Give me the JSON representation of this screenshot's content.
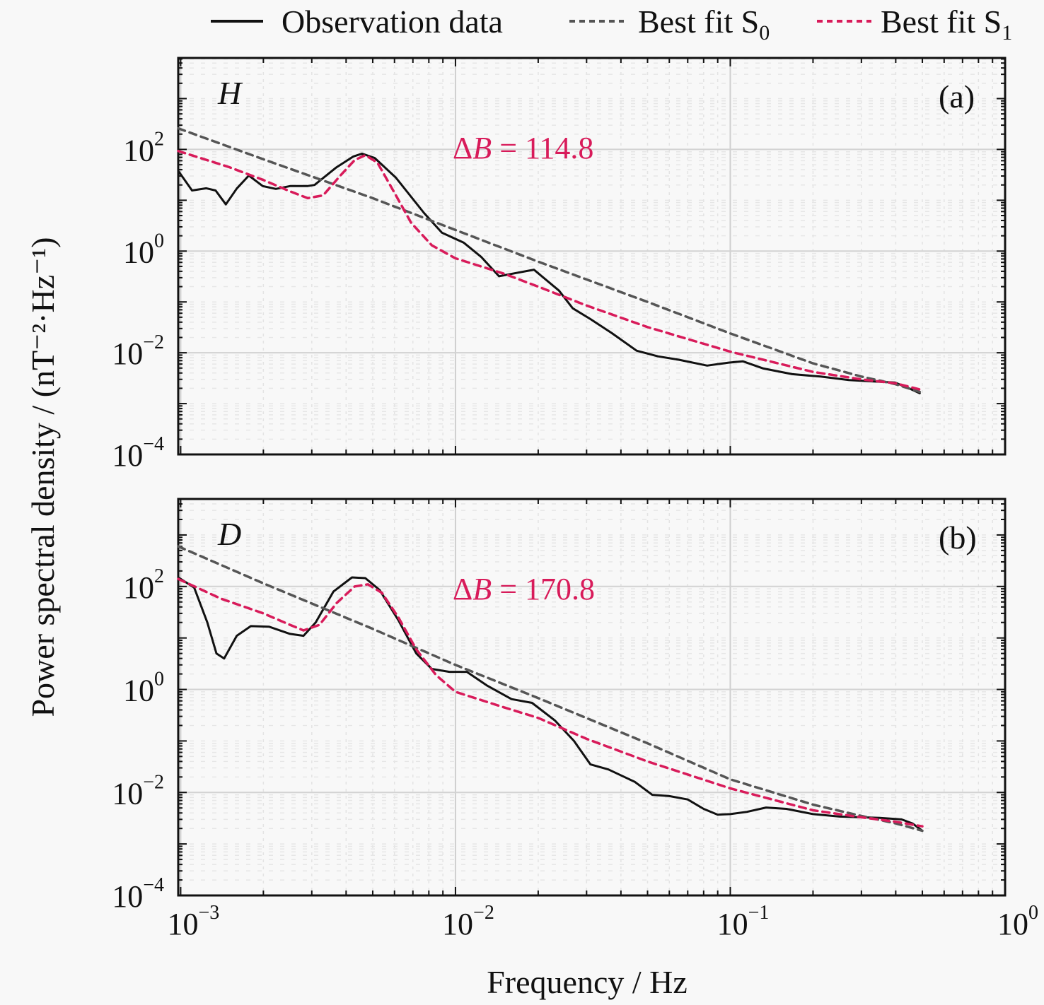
{
  "chart_data": {
    "type": "line",
    "xscale": "log",
    "yscale": "log",
    "xlabel": "Frequency / Hz",
    "ylabel": "Power spectral density / (nT⁻²·Hz⁻¹)",
    "xlim": [
      0.00098,
      1
    ],
    "x_ticks": [
      {
        "value": 0.001,
        "base": "10",
        "exp": "−3"
      },
      {
        "value": 0.01,
        "base": "10",
        "exp": "−2"
      },
      {
        "value": 0.1,
        "base": "10",
        "exp": "−1"
      },
      {
        "value": 1,
        "base": "10",
        "exp": "0"
      }
    ],
    "grid": true,
    "legend": {
      "placement": "top",
      "entries": [
        {
          "label": "Observation data",
          "sub": "",
          "color": "#111111",
          "style": "solid"
        },
        {
          "label": "Best fit S",
          "sub": "0",
          "color": "#555555",
          "style": "dashed"
        },
        {
          "label": "Best fit S",
          "sub": "1",
          "color": "#d81b5a",
          "style": "dashed"
        }
      ]
    },
    "panels": [
      {
        "tag": "(a)",
        "component": "H",
        "annotation": "ΔB = 114.8",
        "annotation_parts": {
          "delta": "Δ",
          "var": "B",
          "eq": " = 114.8"
        },
        "ylim": [
          0.0001,
          6300
        ],
        "y_ticks": [
          {
            "value": 100,
            "base": "10",
            "exp": "2"
          },
          {
            "value": 1,
            "base": "10",
            "exp": "0"
          },
          {
            "value": 0.01,
            "base": "10",
            "exp": "−2"
          },
          {
            "value": 0.0001,
            "base": "10",
            "exp": "−4"
          }
        ],
        "series": [
          {
            "name": "Observation data",
            "color": "#111111",
            "dash": false,
            "points": [
              [
                0.00098,
                38
              ],
              [
                0.0011,
                15.6
              ],
              [
                0.00124,
                17.2
              ],
              [
                0.00134,
                15.6
              ],
              [
                0.00146,
                8.3
              ],
              [
                0.0016,
                17
              ],
              [
                0.00177,
                30.6
              ],
              [
                0.00199,
                19
              ],
              [
                0.00222,
                16.7
              ],
              [
                0.0025,
                19
              ],
              [
                0.00289,
                19
              ],
              [
                0.00307,
                20
              ],
              [
                0.00367,
                43.5
              ],
              [
                0.00425,
                72.7
              ],
              [
                0.00457,
                82.5
              ],
              [
                0.00508,
                68
              ],
              [
                0.00607,
                27.8
              ],
              [
                0.00769,
                5.6
              ],
              [
                0.00893,
                2.3
              ],
              [
                0.0107,
                1.47
              ],
              [
                0.0124,
                0.77
              ],
              [
                0.0144,
                0.32
              ],
              [
                0.0166,
                0.37
              ],
              [
                0.0193,
                0.43
              ],
              [
                0.0238,
                0.167
              ],
              [
                0.0267,
                0.075
              ],
              [
                0.031,
                0.046
              ],
              [
                0.037,
                0.0245
              ],
              [
                0.0456,
                0.011
              ],
              [
                0.0545,
                0.0085
              ],
              [
                0.065,
                0.0073
              ],
              [
                0.0824,
                0.0056
              ],
              [
                0.0986,
                0.0064
              ],
              [
                0.111,
                0.0068
              ],
              [
                0.132,
                0.0049
              ],
              [
                0.168,
                0.0038
              ],
              [
                0.213,
                0.0034
              ],
              [
                0.27,
                0.0029
              ],
              [
                0.342,
                0.0027
              ],
              [
                0.397,
                0.0026
              ],
              [
                0.447,
                0.002
              ],
              [
                0.489,
                0.0016
              ]
            ]
          },
          {
            "name": "Best fit S0",
            "color": "#555555",
            "dash": true,
            "points": [
              [
                0.00098,
                260
              ],
              [
                0.002,
                64
              ],
              [
                0.005,
                11
              ],
              [
                0.01,
                2.6
              ],
              [
                0.02,
                0.62
              ],
              [
                0.05,
                0.1
              ],
              [
                0.1,
                0.024
              ],
              [
                0.2,
                0.0062
              ],
              [
                0.3,
                0.0034
              ],
              [
                0.4,
                0.0024
              ],
              [
                0.489,
                0.0017
              ]
            ]
          },
          {
            "name": "Best fit S1",
            "color": "#d81b5a",
            "dash": true,
            "points": [
              [
                0.00098,
                93
              ],
              [
                0.0015,
                45
              ],
              [
                0.002,
                25
              ],
              [
                0.0025,
                15
              ],
              [
                0.0029,
                11
              ],
              [
                0.0033,
                12.5
              ],
              [
                0.0038,
                30
              ],
              [
                0.0043,
                62
              ],
              [
                0.0047,
                77
              ],
              [
                0.0052,
                55
              ],
              [
                0.006,
                14
              ],
              [
                0.0069,
                3.6
              ],
              [
                0.0082,
                1.3
              ],
              [
                0.01,
                0.72
              ],
              [
                0.015,
                0.36
              ],
              [
                0.02,
                0.2
              ],
              [
                0.03,
                0.085
              ],
              [
                0.05,
                0.032
              ],
              [
                0.1,
                0.0105
              ],
              [
                0.2,
                0.0042
              ],
              [
                0.3,
                0.003
              ],
              [
                0.4,
                0.0025
              ],
              [
                0.489,
                0.0019
              ]
            ]
          }
        ]
      },
      {
        "tag": "(b)",
        "component": "D",
        "annotation": "ΔB = 170.8",
        "annotation_parts": {
          "delta": "Δ",
          "var": "B",
          "eq": " = 170.8"
        },
        "ylim": [
          0.0001,
          5000
        ],
        "y_ticks": [
          {
            "value": 100,
            "base": "10",
            "exp": "2"
          },
          {
            "value": 1,
            "base": "10",
            "exp": "0"
          },
          {
            "value": 0.01,
            "base": "10",
            "exp": "−2"
          },
          {
            "value": 0.0001,
            "base": "10",
            "exp": "−4"
          }
        ],
        "series": [
          {
            "name": "Observation data",
            "color": "#111111",
            "dash": false,
            "points": [
              [
                0.00098,
                150
              ],
              [
                0.00112,
                95
              ],
              [
                0.00125,
                20
              ],
              [
                0.00135,
                5
              ],
              [
                0.00144,
                4
              ],
              [
                0.0016,
                11
              ],
              [
                0.0018,
                17
              ],
              [
                0.0021,
                16.5
              ],
              [
                0.0025,
                12
              ],
              [
                0.0028,
                11
              ],
              [
                0.0031,
                20
              ],
              [
                0.0036,
                80
              ],
              [
                0.0042,
                150
              ],
              [
                0.0047,
                145
              ],
              [
                0.0053,
                85
              ],
              [
                0.0062,
                22
              ],
              [
                0.0072,
                5
              ],
              [
                0.0082,
                2.5
              ],
              [
                0.0095,
                2.2
              ],
              [
                0.011,
                2.2
              ],
              [
                0.013,
                1.2
              ],
              [
                0.016,
                0.65
              ],
              [
                0.019,
                0.55
              ],
              [
                0.023,
                0.25
              ],
              [
                0.027,
                0.1
              ],
              [
                0.031,
                0.035
              ],
              [
                0.036,
                0.028
              ],
              [
                0.045,
                0.016
              ],
              [
                0.052,
                0.009
              ],
              [
                0.06,
                0.0085
              ],
              [
                0.07,
                0.0073
              ],
              [
                0.08,
                0.0048
              ],
              [
                0.09,
                0.0037
              ],
              [
                0.1,
                0.0038
              ],
              [
                0.115,
                0.0042
              ],
              [
                0.135,
                0.0051
              ],
              [
                0.16,
                0.0048
              ],
              [
                0.2,
                0.0038
              ],
              [
                0.25,
                0.0034
              ],
              [
                0.3,
                0.0033
              ],
              [
                0.35,
                0.0032
              ],
              [
                0.42,
                0.003
              ],
              [
                0.46,
                0.0025
              ],
              [
                0.5,
                0.0018
              ]
            ]
          },
          {
            "name": "Best fit S0",
            "color": "#555555",
            "dash": true,
            "points": [
              [
                0.00098,
                600
              ],
              [
                0.002,
                115
              ],
              [
                0.005,
                15
              ],
              [
                0.01,
                3.0
              ],
              [
                0.02,
                0.68
              ],
              [
                0.05,
                0.09
              ],
              [
                0.1,
                0.018
              ],
              [
                0.2,
                0.0058
              ],
              [
                0.3,
                0.0035
              ],
              [
                0.4,
                0.0025
              ],
              [
                0.5,
                0.0018
              ]
            ]
          },
          {
            "name": "Best fit S1",
            "color": "#d81b5a",
            "dash": true,
            "points": [
              [
                0.00098,
                140
              ],
              [
                0.0014,
                58
              ],
              [
                0.002,
                30
              ],
              [
                0.0025,
                18
              ],
              [
                0.0028,
                14
              ],
              [
                0.0032,
                18
              ],
              [
                0.0037,
                48
              ],
              [
                0.0043,
                100
              ],
              [
                0.0048,
                110
              ],
              [
                0.0054,
                75
              ],
              [
                0.0062,
                25
              ],
              [
                0.0072,
                6
              ],
              [
                0.0085,
                1.9
              ],
              [
                0.01,
                0.9
              ],
              [
                0.015,
                0.45
              ],
              [
                0.02,
                0.28
              ],
              [
                0.03,
                0.11
              ],
              [
                0.05,
                0.04
              ],
              [
                0.1,
                0.012
              ],
              [
                0.2,
                0.0045
              ],
              [
                0.3,
                0.0033
              ],
              [
                0.4,
                0.0027
              ],
              [
                0.5,
                0.0022
              ]
            ]
          }
        ]
      }
    ]
  }
}
